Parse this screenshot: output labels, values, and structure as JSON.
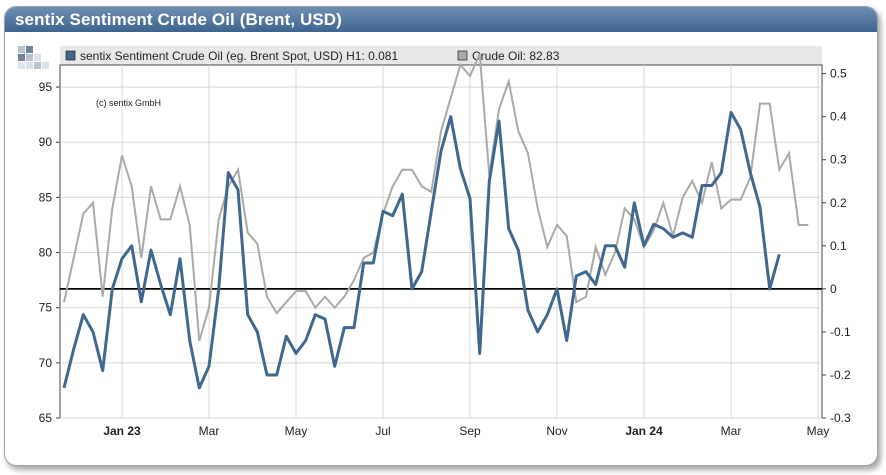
{
  "window": {
    "title": "sentix Sentiment Crude Oil (Brent, USD)"
  },
  "copyright": "(c) sentix GmbH",
  "colors": {
    "sentiment": "#3f6891",
    "crude": "#a9a9a9",
    "header": "#4a6e97"
  },
  "chart_data": {
    "type": "line",
    "legend_position": "top",
    "grid": true,
    "x_ticks": [
      {
        "label": "Jan 23",
        "bold": true,
        "week": 6
      },
      {
        "label": "Mar",
        "bold": false,
        "week": 15
      },
      {
        "label": "May",
        "bold": false,
        "week": 24
      },
      {
        "label": "Jul",
        "bold": false,
        "week": 33
      },
      {
        "label": "Sep",
        "bold": false,
        "week": 42
      },
      {
        "label": "Nov",
        "bold": false,
        "week": 51
      },
      {
        "label": "Jan 24",
        "bold": true,
        "week": 60
      },
      {
        "label": "Mar",
        "bold": false,
        "week": 69
      },
      {
        "label": "May",
        "bold": false,
        "week": 78
      }
    ],
    "y_left": {
      "range": [
        65,
        97
      ],
      "ticks": [
        65,
        70,
        75,
        80,
        85,
        90,
        95
      ]
    },
    "y_right": {
      "range": [
        -0.3,
        0.52
      ],
      "ticks": [
        "-0.3",
        "-0.2",
        "-0.1",
        "0",
        "0.1",
        "0.2",
        "0.3",
        "0.4",
        "0.5"
      ]
    },
    "zero_line": 0,
    "series": [
      {
        "name": "sentix Sentiment Crude Oil (eg. Brent Spot, USD) H1: 0.081",
        "axis": "right",
        "values": [
          -0.23,
          -0.14,
          -0.06,
          -0.1,
          -0.19,
          0,
          0.07,
          0.1,
          -0.03,
          0.09,
          0.01,
          -0.06,
          0.07,
          -0.12,
          -0.23,
          -0.18,
          0,
          0.27,
          0.23,
          -0.06,
          -0.1,
          -0.2,
          -0.2,
          -0.11,
          -0.15,
          -0.12,
          -0.06,
          -0.07,
          -0.18,
          -0.09,
          -0.09,
          0.06,
          0.06,
          0.18,
          0.17,
          0.22,
          0,
          0.04,
          0.18,
          0.32,
          0.4,
          0.28,
          0.21,
          -0.15,
          0.25,
          0.39,
          0.14,
          0.09,
          -0.05,
          -0.1,
          -0.06,
          0,
          -0.12,
          0.03,
          0.04,
          0.01,
          0.1,
          0.1,
          0.05,
          0.2,
          0.1,
          0.15,
          0.14,
          0.12,
          0.13,
          0.12,
          0.24,
          0.24,
          0.27,
          0.41,
          0.37,
          0.27,
          0.19,
          0,
          0.08
        ]
      },
      {
        "name": "Crude Oil: 82.83",
        "axis": "left",
        "values": [
          75.5,
          79.5,
          83.5,
          84.5,
          76,
          84,
          88.8,
          86,
          79.5,
          86,
          83,
          83,
          86,
          82.5,
          72,
          75,
          83,
          86,
          87.5,
          81.8,
          80.8,
          76,
          74.5,
          75.5,
          76.5,
          76.5,
          75,
          76,
          75,
          76,
          77.5,
          79.5,
          80,
          83.5,
          86,
          87.5,
          87.5,
          86,
          85.5,
          91,
          94,
          97,
          96,
          98,
          87,
          93,
          95.5,
          91,
          89,
          84,
          80.5,
          82.5,
          81.5,
          75.5,
          76,
          80.5,
          78,
          80,
          84,
          83,
          80.5,
          82,
          84.5,
          81.5,
          85,
          86.5,
          84.5,
          88.2,
          84,
          84.8,
          84.8,
          86.8,
          93.5,
          93.5,
          87.5,
          89,
          82.5,
          82.5
        ]
      }
    ]
  }
}
